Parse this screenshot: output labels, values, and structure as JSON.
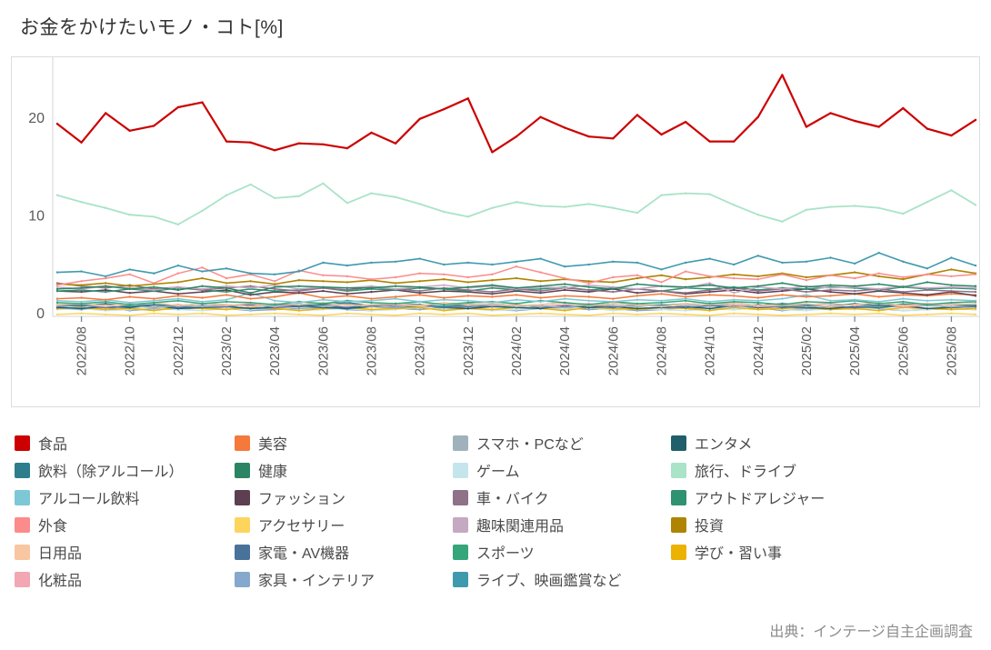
{
  "title": "お金をかけたいモノ・コト[%]",
  "source": "出典：インテージ自主企画調査",
  "chart_data": {
    "type": "line",
    "title": "お金をかけたいモノ・コト[%]",
    "ylabel": "%",
    "ylim": [
      0,
      26
    ],
    "yticks": [
      0,
      10,
      20
    ],
    "grid": false,
    "legend_position": "bottom",
    "x_tick_labels": [
      "2022/08",
      "2022/10",
      "2022/12",
      "2023/02",
      "2023/04",
      "2023/06",
      "2023/08",
      "2023/10",
      "2023/12",
      "2024/02",
      "2024/04",
      "2024/06",
      "2024/08",
      "2024/10",
      "2024/12",
      "2025/02",
      "2025/04",
      "2025/06",
      "2025/08"
    ],
    "x_note": "monthly points 2022/07 - 2025/09, labels every 2 months",
    "axis_color": "#d6d6d6",
    "tick_color": "#6b8cab",
    "tick_label_color": "#595959",
    "series": [
      {
        "name": "食品",
        "color": "#cc0000",
        "width": 2.2,
        "values": [
          19.7,
          17.8,
          20.8,
          19.0,
          19.5,
          21.4,
          21.9,
          17.9,
          17.8,
          17.0,
          17.7,
          17.6,
          17.2,
          18.8,
          17.7,
          20.2,
          21.2,
          22.3,
          16.8,
          18.4,
          20.4,
          19.3,
          18.4,
          18.2,
          20.6,
          18.6,
          19.9,
          17.9,
          17.9,
          20.4,
          24.7,
          19.4,
          20.8,
          20.0,
          19.4,
          21.3,
          19.2,
          18.5,
          20.1
        ]
      },
      {
        "name": "飲料（除アルコール）",
        "color": "#2e7d8c",
        "width": 1.5,
        "values": [
          1.2,
          1.1,
          1.3,
          1.0,
          1.2,
          1.1,
          1.3,
          1.2,
          1.0,
          1.3,
          1.1,
          1.2,
          1.4,
          1.1,
          1.3,
          1.2,
          1.0,
          1.2,
          1.3,
          1.1,
          1.2,
          1.4,
          1.1,
          1.3,
          1.2,
          1.1,
          1.3,
          1.2,
          1.4,
          1.1,
          1.3,
          1.2,
          1.0,
          1.3,
          1.1,
          1.2,
          1.3,
          1.2,
          1.1
        ]
      },
      {
        "name": "アルコール飲料",
        "color": "#7cc8d6",
        "width": 1.5,
        "values": [
          1.6,
          1.5,
          1.7,
          1.4,
          1.6,
          1.8,
          1.5,
          1.7,
          2.4,
          1.6,
          1.4,
          1.7,
          1.5,
          1.6,
          1.8,
          1.5,
          1.7,
          1.6,
          1.4,
          1.7,
          1.5,
          1.8,
          1.6,
          1.5,
          1.7,
          1.6,
          1.8,
          1.5,
          1.7,
          1.6,
          1.8,
          2.2,
          1.6,
          1.7,
          1.5,
          1.8,
          1.6,
          1.7,
          1.6
        ]
      },
      {
        "name": "外食",
        "color": "#fc8b8b",
        "width": 1.5,
        "values": [
          3.2,
          3.6,
          3.9,
          4.3,
          3.4,
          4.4,
          5.0,
          3.9,
          4.3,
          3.6,
          4.7,
          4.2,
          4.1,
          3.8,
          4.0,
          4.4,
          4.3,
          4.0,
          4.3,
          5.1,
          4.5,
          3.9,
          3.4,
          4.0,
          4.2,
          3.5,
          4.6,
          4.1,
          3.9,
          3.8,
          4.3,
          3.7,
          4.2,
          3.9,
          4.4,
          4.0,
          4.3,
          4.1,
          4.3
        ]
      },
      {
        "name": "日用品",
        "color": "#f9c6a2",
        "width": 1.5,
        "values": [
          1.2,
          1.3,
          1.1,
          1.2,
          1.4,
          1.1,
          1.3,
          1.2,
          1.0,
          1.3,
          1.2,
          1.4,
          1.1,
          1.2,
          1.3,
          1.1,
          1.4,
          1.2,
          1.3,
          1.1,
          1.2,
          1.4,
          1.1,
          1.3,
          1.2,
          1.0,
          1.3,
          1.2,
          1.4,
          1.1,
          1.2,
          1.3,
          1.0,
          1.2,
          1.4,
          1.1,
          1.3,
          1.2,
          1.3
        ]
      },
      {
        "name": "化粧品",
        "color": "#f2a7b2",
        "width": 1.5,
        "values": [
          1.1,
          1.2,
          1.0,
          1.3,
          1.1,
          1.2,
          1.0,
          1.1,
          1.3,
          1.0,
          1.2,
          1.1,
          1.3,
          1.0,
          1.2,
          1.1,
          1.0,
          1.3,
          1.1,
          1.2,
          1.0,
          1.2,
          1.3,
          1.1,
          1.0,
          1.2,
          1.1,
          1.3,
          1.2,
          1.0,
          1.1,
          1.2,
          1.3,
          1.1,
          1.2,
          1.0,
          1.1,
          1.3,
          1.2
        ]
      },
      {
        "name": "美容",
        "color": "#f4793b",
        "width": 1.5,
        "values": [
          1.8,
          1.9,
          1.7,
          2.0,
          1.8,
          2.1,
          1.9,
          2.2,
          1.8,
          2.0,
          2.4,
          1.9,
          2.1,
          1.8,
          2.0,
          2.2,
          1.9,
          2.1,
          2.0,
          2.2,
          1.9,
          2.1,
          2.0,
          1.8,
          2.1,
          2.3,
          2.0,
          2.2,
          2.1,
          1.9,
          2.2,
          2.0,
          2.1,
          2.3,
          2.0,
          2.2,
          2.1,
          2.3,
          2.2
        ]
      },
      {
        "name": "健康",
        "color": "#2b8564",
        "width": 1.5,
        "values": [
          2.8,
          2.9,
          3.1,
          2.8,
          3.0,
          2.7,
          3.1,
          2.9,
          2.4,
          3.0,
          3.1,
          3.0,
          2.9,
          2.9,
          3.1,
          3.0,
          2.8,
          3.0,
          3.2,
          2.9,
          3.1,
          3.3,
          3.0,
          2.8,
          3.3,
          3.1,
          3.0,
          3.2,
          2.9,
          3.1,
          3.4,
          3.0,
          3.2,
          3.1,
          3.3,
          3.0,
          3.5,
          3.2,
          3.1
        ]
      },
      {
        "name": "ファッション",
        "color": "#5d3f51",
        "width": 1.5,
        "values": [
          2.6,
          2.5,
          2.7,
          2.4,
          2.6,
          2.3,
          2.5,
          2.7,
          2.2,
          2.5,
          2.4,
          2.6,
          2.3,
          2.5,
          2.7,
          2.4,
          2.6,
          2.5,
          2.3,
          2.6,
          2.4,
          2.7,
          2.5,
          2.8,
          2.4,
          2.6,
          2.3,
          2.5,
          2.7,
          2.4,
          2.6,
          2.8,
          2.5,
          2.3,
          2.6,
          2.4,
          2.2,
          2.5,
          2.1
        ]
      },
      {
        "name": "アクセサリー",
        "color": "#fdd55c",
        "width": 1.5,
        "values": [
          0.2,
          0.3,
          0.2,
          0.1,
          0.3,
          0.2,
          0.3,
          0.1,
          0.2,
          0.3,
          0.2,
          0.1,
          0.3,
          0.2,
          0.1,
          0.3,
          0.2,
          0.3,
          0.1,
          0.2,
          0.3,
          0.2,
          0.1,
          0.3,
          0.2,
          0.3,
          0.2,
          0.1,
          0.3,
          0.2,
          0.1,
          0.2,
          0.3,
          0.2,
          0.3,
          0.1,
          0.2,
          0.3,
          0.2
        ]
      },
      {
        "name": "家電・AV機器",
        "color": "#49729b",
        "width": 1.5,
        "values": [
          1.0,
          1.1,
          0.9,
          1.0,
          1.2,
          0.9,
          1.1,
          1.0,
          1.2,
          0.9,
          1.0,
          1.1,
          0.9,
          1.2,
          1.0,
          1.1,
          0.9,
          1.0,
          1.1,
          1.2,
          0.9,
          1.0,
          1.1,
          0.9,
          1.2,
          1.0,
          0.9,
          1.1,
          1.0,
          1.2,
          0.9,
          1.1,
          1.0,
          0.9,
          1.1,
          1.0,
          1.2,
          0.9,
          1.0
        ]
      },
      {
        "name": "家具・インテリア",
        "color": "#85a8cc",
        "width": 1.5,
        "values": [
          0.8,
          0.7,
          0.9,
          0.6,
          0.8,
          0.7,
          0.9,
          0.8,
          0.6,
          0.7,
          0.8,
          0.9,
          0.7,
          0.6,
          0.8,
          0.7,
          0.9,
          0.8,
          0.7,
          0.6,
          0.8,
          0.9,
          0.7,
          0.8,
          0.6,
          0.7,
          0.9,
          0.8,
          0.7,
          0.9,
          0.6,
          0.8,
          0.7,
          0.9,
          0.8,
          0.6,
          0.7,
          0.8,
          0.7
        ]
      },
      {
        "name": "スマホ・PCなど",
        "color": "#9fb2bc",
        "width": 1.5,
        "values": [
          1.1,
          1.0,
          1.2,
          1.1,
          0.9,
          1.1,
          1.0,
          1.2,
          1.0,
          1.1,
          1.3,
          1.0,
          1.2,
          1.1,
          0.9,
          1.2,
          1.0,
          1.1,
          1.2,
          1.0,
          1.1,
          0.9,
          1.2,
          1.1,
          1.0,
          1.2,
          1.1,
          1.3,
          1.0,
          1.1,
          1.2,
          1.0,
          1.1,
          1.2,
          1.0,
          1.3,
          1.1,
          1.0,
          1.1
        ]
      },
      {
        "name": "ゲーム",
        "color": "#c5e5ec",
        "width": 1.5,
        "values": [
          0.7,
          0.8,
          0.6,
          0.7,
          0.9,
          0.7,
          0.6,
          0.8,
          0.7,
          0.9,
          0.6,
          0.7,
          0.8,
          0.6,
          0.7,
          0.9,
          0.7,
          0.8,
          0.6,
          0.7,
          0.8,
          0.7,
          0.9,
          0.6,
          0.8,
          0.7,
          0.6,
          0.8,
          0.7,
          0.9,
          0.7,
          0.6,
          0.8,
          0.7,
          0.9,
          0.6,
          0.7,
          0.8,
          0.7
        ]
      },
      {
        "name": "車・バイク",
        "color": "#8f7188",
        "width": 1.5,
        "values": [
          3.4,
          3.1,
          2.9,
          3.2,
          2.8,
          3.0,
          2.7,
          2.9,
          3.1,
          2.8,
          2.6,
          2.9,
          2.7,
          3.0,
          2.8,
          2.6,
          2.9,
          2.7,
          2.5,
          2.8,
          2.6,
          2.9,
          2.7,
          2.5,
          2.8,
          2.6,
          2.4,
          2.7,
          2.9,
          2.6,
          2.8,
          2.5,
          2.7,
          2.6,
          2.8,
          2.5,
          2.7,
          2.6,
          2.5
        ]
      },
      {
        "name": "趣味関連用品",
        "color": "#c5a9c2",
        "width": 1.5,
        "values": [
          3.0,
          2.8,
          3.1,
          2.9,
          2.7,
          3.0,
          2.8,
          3.1,
          2.9,
          3.2,
          2.8,
          3.0,
          2.9,
          3.1,
          2.8,
          3.0,
          3.2,
          2.9,
          3.1,
          2.8,
          3.0,
          2.9,
          3.2,
          3.0,
          2.8,
          3.1,
          2.9,
          3.4,
          2.4,
          3.0,
          2.8,
          3.1,
          2.9,
          3.0,
          2.8,
          3.1,
          2.9,
          3.0,
          2.9
        ]
      },
      {
        "name": "スポーツ",
        "color": "#35a679",
        "width": 1.5,
        "values": [
          1.4,
          1.3,
          1.5,
          1.2,
          1.4,
          1.6,
          1.3,
          1.5,
          1.4,
          1.2,
          1.5,
          1.3,
          1.6,
          1.4,
          1.3,
          1.5,
          1.2,
          1.4,
          1.5,
          1.3,
          1.6,
          1.4,
          1.2,
          1.5,
          1.3,
          1.4,
          1.6,
          1.3,
          1.5,
          1.4,
          1.2,
          1.5,
          1.4,
          1.6,
          1.3,
          1.5,
          1.2,
          1.4,
          1.5
        ]
      },
      {
        "name": "ライブ、映画鑑賞など",
        "color": "#3f9aae",
        "width": 1.6,
        "values": [
          4.5,
          4.6,
          4.1,
          4.8,
          4.4,
          5.2,
          4.6,
          4.9,
          4.4,
          4.3,
          4.6,
          5.5,
          5.2,
          5.5,
          5.6,
          5.9,
          5.3,
          5.5,
          5.3,
          5.6,
          5.9,
          5.1,
          5.3,
          5.6,
          5.5,
          4.8,
          5.5,
          5.9,
          5.3,
          6.2,
          5.5,
          5.6,
          6.0,
          5.4,
          6.5,
          5.6,
          4.9,
          6.0,
          5.2
        ]
      },
      {
        "name": "エンタメ",
        "color": "#1f5f6b",
        "width": 1.5,
        "values": [
          0.9,
          0.8,
          1.0,
          0.9,
          1.1,
          0.8,
          0.9,
          1.0,
          0.8,
          0.9,
          1.1,
          0.9,
          0.8,
          1.0,
          0.9,
          1.1,
          0.9,
          0.8,
          1.0,
          0.9,
          0.8,
          1.1,
          0.9,
          1.0,
          0.8,
          0.9,
          1.0,
          0.8,
          1.1,
          0.9,
          1.0,
          0.9,
          0.8,
          1.0,
          0.9,
          1.1,
          0.8,
          0.9,
          1.0
        ]
      },
      {
        "name": "旅行、ドライブ",
        "color": "#a9e3c8",
        "width": 1.8,
        "values": [
          12.4,
          11.7,
          11.1,
          10.4,
          10.2,
          9.4,
          10.8,
          12.4,
          13.5,
          12.1,
          12.3,
          13.6,
          11.6,
          12.6,
          12.2,
          11.5,
          10.7,
          10.2,
          11.1,
          11.7,
          11.3,
          11.2,
          11.5,
          11.1,
          10.6,
          12.4,
          12.6,
          12.5,
          11.4,
          10.4,
          9.7,
          10.9,
          11.2,
          11.3,
          11.1,
          10.5,
          11.7,
          12.9,
          11.4
        ]
      },
      {
        "name": "アウトドアレジャー",
        "color": "#2f9271",
        "width": 1.5,
        "values": [
          2.6,
          2.7,
          2.5,
          2.8,
          2.6,
          2.9,
          2.7,
          2.5,
          2.8,
          2.6,
          2.7,
          2.9,
          2.6,
          2.8,
          2.7,
          2.9,
          2.8,
          2.6,
          2.9,
          2.7,
          2.8,
          3.0,
          2.7,
          2.9,
          2.8,
          2.6,
          2.9,
          2.8,
          3.0,
          2.7,
          2.9,
          2.8,
          3.0,
          2.9,
          2.7,
          3.0,
          2.8,
          2.9,
          2.8
        ]
      },
      {
        "name": "投資",
        "color": "#af8400",
        "width": 1.6,
        "values": [
          3.3,
          3.2,
          3.4,
          3.1,
          3.3,
          3.5,
          3.9,
          3.4,
          3.6,
          3.3,
          3.7,
          3.6,
          3.5,
          3.7,
          3.4,
          3.6,
          3.8,
          3.5,
          3.7,
          3.9,
          3.6,
          3.8,
          3.6,
          3.5,
          3.9,
          4.2,
          3.8,
          4.0,
          4.3,
          4.1,
          4.4,
          4.0,
          4.2,
          4.5,
          4.1,
          3.8,
          4.3,
          4.8,
          4.4
        ]
      },
      {
        "name": "学び・習い事",
        "color": "#ecb200",
        "width": 1.5,
        "values": [
          0.8,
          0.9,
          0.7,
          0.8,
          0.6,
          0.9,
          0.8,
          0.7,
          0.9,
          0.8,
          0.6,
          0.8,
          0.9,
          0.7,
          0.8,
          0.9,
          0.6,
          0.8,
          0.7,
          0.9,
          0.8,
          0.6,
          0.9,
          0.8,
          0.7,
          0.9,
          0.8,
          0.6,
          0.9,
          0.7,
          0.8,
          0.9,
          0.7,
          0.8,
          0.6,
          0.9,
          0.8,
          0.7,
          0.8
        ]
      }
    ]
  }
}
